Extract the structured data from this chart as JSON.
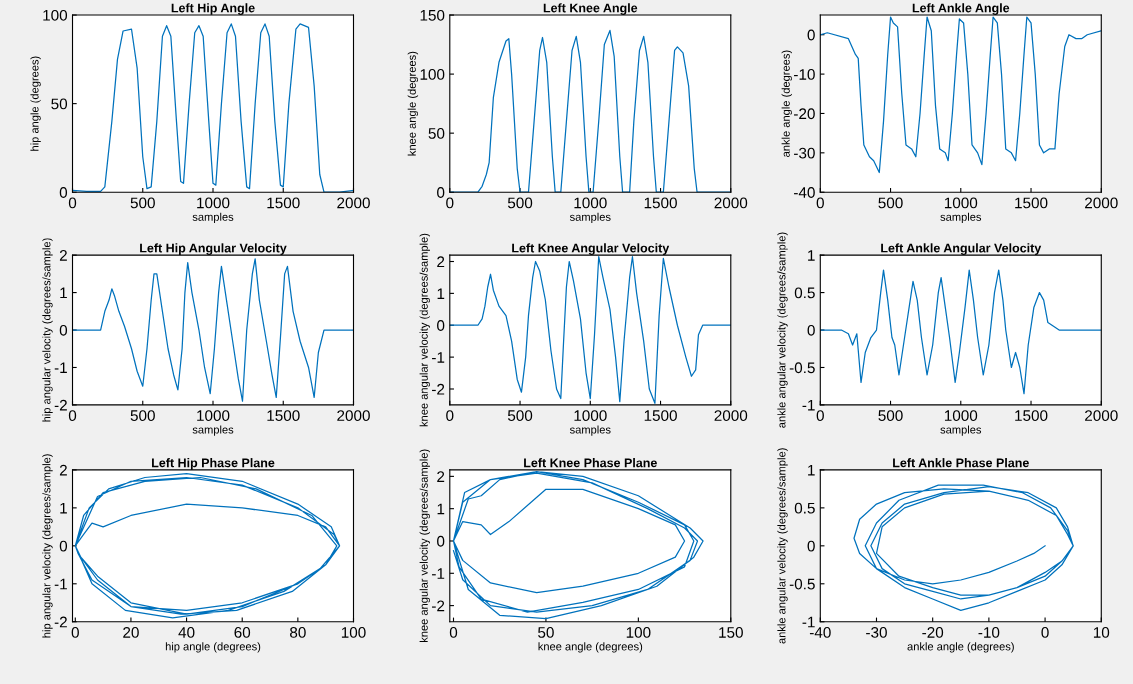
{
  "chart_data": [
    {
      "type": "line",
      "title": "Left Hip Angle",
      "xlabel": "samples",
      "ylabel": "hip angle (degrees)",
      "xlim": [
        0,
        2000
      ],
      "xticks": [
        0,
        500,
        1000,
        1500,
        2000
      ],
      "ylim": [
        0,
        100
      ],
      "yticks": [
        0,
        50,
        100
      ],
      "grid": false,
      "legend": false,
      "marker": "none",
      "line_style": "solid",
      "series": [
        {
          "color": "#0072bd",
          "x": [
            0,
            100,
            200,
            230,
            280,
            320,
            360,
            420,
            460,
            500,
            530,
            560,
            600,
            640,
            670,
            700,
            740,
            770,
            790,
            830,
            870,
            900,
            930,
            970,
            1000,
            1020,
            1060,
            1100,
            1130,
            1160,
            1200,
            1240,
            1260,
            1300,
            1340,
            1370,
            1400,
            1440,
            1480,
            1500,
            1540,
            1590,
            1620,
            1680,
            1720,
            1760,
            1790,
            1820,
            1900,
            2000
          ],
          "values": [
            1,
            0.5,
            0.5,
            3,
            40,
            75,
            91,
            92,
            70,
            20,
            2,
            3,
            40,
            88,
            94,
            88,
            40,
            6,
            5,
            50,
            90,
            94,
            88,
            40,
            5,
            4,
            50,
            90,
            95,
            88,
            40,
            3,
            2,
            50,
            90,
            95,
            88,
            40,
            4,
            3,
            50,
            92,
            95,
            93,
            60,
            10,
            0,
            0,
            0,
            1
          ]
        }
      ]
    },
    {
      "type": "line",
      "title": "Left Knee Angle",
      "xlabel": "samples",
      "ylabel": "knee angle (degrees)",
      "xlim": [
        0,
        2000
      ],
      "xticks": [
        0,
        500,
        1000,
        1500,
        2000
      ],
      "ylim": [
        0,
        150
      ],
      "yticks": [
        0,
        50,
        100,
        150
      ],
      "grid": false,
      "legend": false,
      "marker": "none",
      "line_style": "solid",
      "series": [
        {
          "color": "#0072bd",
          "x": [
            0,
            200,
            230,
            260,
            280,
            310,
            350,
            400,
            420,
            440,
            480,
            500,
            560,
            600,
            640,
            660,
            690,
            730,
            750,
            790,
            830,
            870,
            900,
            930,
            970,
            990,
            1020,
            1060,
            1100,
            1140,
            1170,
            1210,
            1230,
            1280,
            1310,
            1350,
            1380,
            1410,
            1450,
            1470,
            1520,
            1560,
            1600,
            1620,
            1660,
            1700,
            1740,
            1760,
            2000
          ],
          "values": [
            0,
            0,
            5,
            15,
            25,
            80,
            110,
            128,
            130,
            100,
            20,
            0,
            0,
            60,
            120,
            131,
            110,
            30,
            0,
            0,
            60,
            120,
            132,
            110,
            30,
            0,
            0,
            60,
            125,
            137,
            115,
            30,
            0,
            0,
            60,
            120,
            132,
            110,
            30,
            0,
            0,
            60,
            120,
            123,
            118,
            90,
            20,
            0,
            0
          ]
        }
      ]
    },
    {
      "type": "line",
      "title": "Left Ankle Angle",
      "xlabel": "samples",
      "ylabel": "ankle angle (degrees)",
      "xlim": [
        0,
        2000
      ],
      "xticks": [
        0,
        500,
        1000,
        1500,
        2000
      ],
      "ylim": [
        -40,
        5
      ],
      "yticks": [
        -40,
        -30,
        -20,
        -10,
        0
      ],
      "grid": false,
      "legend": false,
      "marker": "none",
      "line_style": "solid",
      "series": [
        {
          "color": "#0072bd",
          "x": [
            0,
            50,
            200,
            250,
            270,
            290,
            310,
            350,
            380,
            420,
            450,
            480,
            500,
            520,
            550,
            580,
            610,
            650,
            680,
            710,
            740,
            760,
            790,
            820,
            850,
            890,
            910,
            940,
            970,
            990,
            1020,
            1050,
            1080,
            1120,
            1150,
            1180,
            1210,
            1230,
            1260,
            1290,
            1320,
            1360,
            1390,
            1420,
            1450,
            1470,
            1500,
            1530,
            1560,
            1590,
            1630,
            1670,
            1700,
            1740,
            1770,
            1820,
            1860,
            1900,
            2000
          ],
          "values": [
            0,
            0.5,
            -1,
            -5,
            -6,
            -18,
            -28,
            -31,
            -32,
            -35,
            -22,
            -5,
            4.5,
            3,
            2,
            -15,
            -28,
            -29,
            -31,
            -20,
            -5,
            4.5,
            1,
            -18,
            -29,
            -30,
            -32,
            -20,
            -5,
            4,
            3,
            -10,
            -28,
            -30,
            -33,
            -20,
            -5,
            4.5,
            3,
            -10,
            -29,
            -30,
            -32,
            -20,
            -5,
            4.5,
            3,
            -10,
            -28,
            -30,
            -29,
            -29,
            -15,
            -3,
            0,
            -1,
            -1,
            0,
            1
          ]
        }
      ]
    },
    {
      "type": "line",
      "title": "Left Hip Angular Velocity",
      "xlabel": "samples",
      "ylabel": "hip angular velocity (degrees/sample)",
      "xlim": [
        0,
        2000
      ],
      "xticks": [
        0,
        500,
        1000,
        1500,
        2000
      ],
      "ylim": [
        -2,
        2
      ],
      "yticks": [
        -2,
        -1,
        0,
        1,
        2
      ],
      "grid": false,
      "legend": false,
      "marker": "none",
      "line_style": "solid",
      "series": [
        {
          "color": "#0072bd",
          "x": [
            0,
            200,
            230,
            260,
            280,
            300,
            330,
            370,
            420,
            460,
            500,
            530,
            560,
            580,
            600,
            640,
            680,
            720,
            750,
            780,
            800,
            820,
            850,
            900,
            940,
            980,
            1010,
            1040,
            1060,
            1100,
            1140,
            1180,
            1210,
            1240,
            1280,
            1300,
            1330,
            1380,
            1420,
            1450,
            1480,
            1510,
            1530,
            1570,
            1620,
            1680,
            1720,
            1750,
            1790,
            2000
          ],
          "values": [
            0,
            0,
            0.5,
            0.8,
            1.1,
            0.9,
            0.5,
            0.1,
            -0.5,
            -1.1,
            -1.5,
            -0.5,
            0.8,
            1.5,
            1.5,
            0.5,
            -0.5,
            -1.2,
            -1.6,
            -0.5,
            1.0,
            1.8,
            1.0,
            0,
            -1.0,
            -1.7,
            -0.5,
            1.0,
            1.7,
            0.7,
            -0.3,
            -1.3,
            -1.9,
            0,
            1.5,
            1.9,
            0.8,
            -0.3,
            -1.2,
            -1.8,
            -0.2,
            1.5,
            1.7,
            0.5,
            -0.3,
            -1.0,
            -1.8,
            -0.6,
            0,
            0
          ]
        }
      ]
    },
    {
      "type": "line",
      "title": "Left Knee Angular Velocity",
      "xlabel": "samples",
      "ylabel": "knee angular velocity (degrees/sample)",
      "xlim": [
        0,
        2000
      ],
      "xticks": [
        0,
        500,
        1000,
        1500,
        2000
      ],
      "ylim": [
        -2.5,
        2.2
      ],
      "yticks": [
        -2,
        -1,
        0,
        1,
        2
      ],
      "grid": false,
      "legend": false,
      "marker": "none",
      "line_style": "solid",
      "series": [
        {
          "color": "#0072bd",
          "x": [
            0,
            200,
            230,
            250,
            270,
            290,
            310,
            350,
            400,
            440,
            480,
            510,
            540,
            560,
            590,
            610,
            640,
            680,
            720,
            760,
            790,
            810,
            830,
            850,
            880,
            930,
            970,
            1000,
            1030,
            1060,
            1090,
            1140,
            1180,
            1210,
            1240,
            1280,
            1300,
            1330,
            1380,
            1420,
            1460,
            1490,
            1520,
            1560,
            1620,
            1680,
            1720,
            1750,
            1770,
            1800,
            2000
          ],
          "values": [
            0,
            0,
            0.2,
            0.6,
            1.2,
            1.6,
            1.1,
            0.6,
            0.3,
            -0.5,
            -1.7,
            -2.1,
            -1.0,
            0.3,
            1.5,
            2.0,
            1.7,
            0.8,
            -0.8,
            -2.0,
            -2.3,
            -0.5,
            1.2,
            2.0,
            1.4,
            0.2,
            -1.5,
            -2.3,
            -0.3,
            2.15,
            1.5,
            0.5,
            -1.0,
            -2.4,
            -0.5,
            1.5,
            2.15,
            1.0,
            -0.5,
            -2.0,
            -2.45,
            0.3,
            2.1,
            1.2,
            0,
            -1.0,
            -1.6,
            -1.4,
            -0.3,
            0,
            0
          ]
        }
      ]
    },
    {
      "type": "line",
      "title": "Left Ankle Angular Velocity",
      "xlabel": "samples",
      "ylabel": "ankle angular velocity (degrees/sample)",
      "xlim": [
        0,
        2000
      ],
      "xticks": [
        0,
        500,
        1000,
        1500,
        2000
      ],
      "ylim": [
        -1,
        1
      ],
      "yticks": [
        -1,
        -0.5,
        0,
        0.5,
        1
      ],
      "grid": false,
      "legend": false,
      "marker": "none",
      "line_style": "solid",
      "series": [
        {
          "color": "#0072bd",
          "x": [
            0,
            150,
            200,
            230,
            260,
            290,
            320,
            360,
            400,
            430,
            450,
            480,
            510,
            530,
            560,
            600,
            640,
            660,
            690,
            720,
            760,
            800,
            840,
            860,
            890,
            920,
            960,
            990,
            1030,
            1060,
            1090,
            1120,
            1160,
            1200,
            1240,
            1270,
            1300,
            1320,
            1360,
            1390,
            1420,
            1450,
            1480,
            1520,
            1560,
            1590,
            1620,
            1660,
            1700,
            2000
          ],
          "values": [
            0,
            0,
            -0.05,
            -0.2,
            -0.05,
            -0.7,
            -0.3,
            -0.1,
            0,
            0.5,
            0.8,
            0.4,
            -0.1,
            -0.2,
            -0.6,
            -0.1,
            0.4,
            0.65,
            0.4,
            -0.1,
            -0.6,
            -0.2,
            0.5,
            0.7,
            0.3,
            -0.1,
            -0.7,
            -0.3,
            0.3,
            0.8,
            0.4,
            -0.1,
            -0.6,
            -0.2,
            0.5,
            0.8,
            0.4,
            0,
            -0.5,
            -0.3,
            -0.5,
            -0.85,
            -0.2,
            0.3,
            0.5,
            0.4,
            0.1,
            0.05,
            0,
            0
          ]
        }
      ]
    },
    {
      "type": "line",
      "title": "Left Hip Phase Plane",
      "xlabel": "hip angle (degrees)",
      "ylabel": "hip angular velocity (degrees/sample)",
      "xlim": [
        -1,
        100
      ],
      "xticks": [
        0,
        20,
        40,
        60,
        80,
        100
      ],
      "ylim": [
        -2,
        2
      ],
      "yticks": [
        -2,
        -1,
        0,
        1,
        2
      ],
      "grid": false,
      "legend": false,
      "marker": "none",
      "line_style": "solid",
      "series": [
        {
          "color": "#0072bd",
          "x": [
            0,
            3,
            6,
            10,
            20,
            40,
            60,
            80,
            90,
            95,
            90,
            80,
            60,
            40,
            20,
            8,
            2,
            0,
            5,
            12,
            25,
            40,
            60,
            80,
            92,
            95,
            90,
            80,
            60,
            40,
            20,
            6,
            1,
            0,
            8,
            20,
            40,
            60,
            80,
            93,
            95,
            88,
            75,
            55,
            35,
            18,
            6,
            0,
            3,
            10,
            25,
            45,
            65,
            85,
            94,
            90,
            78,
            58,
            38,
            20,
            8,
            2
          ],
          "values": [
            0,
            0.3,
            0.6,
            0.5,
            0.8,
            1.1,
            1.0,
            0.8,
            0.5,
            0,
            -0.5,
            -1.0,
            -1.6,
            -1.8,
            -1.5,
            -0.8,
            -0.3,
            0,
            1.0,
            1.5,
            1.8,
            1.9,
            1.7,
            1.1,
            0.5,
            0,
            -0.5,
            -1.0,
            -1.5,
            -1.7,
            -1.6,
            -0.9,
            -0.2,
            0,
            1.3,
            1.7,
            1.8,
            1.6,
            1.0,
            0.3,
            0,
            -0.6,
            -1.2,
            -1.7,
            -1.9,
            -1.7,
            -1.0,
            0,
            0.8,
            1.4,
            1.7,
            1.8,
            1.5,
            0.8,
            0,
            -0.5,
            -1.2,
            -1.7,
            -1.8,
            -1.6,
            -0.9,
            -0.3
          ]
        }
      ]
    },
    {
      "type": "line",
      "title": "Left Knee Phase Plane",
      "xlabel": "knee angle (degrees)",
      "ylabel": "knee angular velocity (degrees/sample)",
      "xlim": [
        -2,
        150
      ],
      "xticks": [
        0,
        50,
        100,
        150
      ],
      "ylim": [
        -2.5,
        2.2
      ],
      "yticks": [
        -2,
        -1,
        0,
        1,
        2
      ],
      "grid": false,
      "legend": false,
      "marker": "none",
      "line_style": "solid",
      "series": [
        {
          "color": "#0072bd",
          "x": [
            0,
            5,
            15,
            20,
            30,
            50,
            70,
            100,
            120,
            125,
            120,
            100,
            70,
            45,
            20,
            5,
            0,
            5,
            20,
            45,
            70,
            100,
            125,
            130,
            125,
            100,
            70,
            40,
            15,
            3,
            0,
            8,
            15,
            25,
            45,
            70,
            100,
            128,
            135,
            130,
            110,
            80,
            50,
            25,
            8,
            0,
            6,
            20,
            45,
            75,
            105,
            125,
            132,
            128,
            105,
            75,
            45,
            20,
            5,
            0
          ],
          "values": [
            0,
            0.6,
            0.5,
            0.2,
            0.6,
            1.6,
            1.6,
            1.0,
            0.5,
            0,
            -0.5,
            -1.0,
            -1.4,
            -1.6,
            -1.3,
            -0.6,
            0,
            1.2,
            1.9,
            2.15,
            1.9,
            1.2,
            0.5,
            0,
            -0.8,
            -1.5,
            -1.9,
            -2.2,
            -1.8,
            -0.8,
            0,
            1.3,
            1.4,
            1.9,
            2.15,
            2.0,
            1.4,
            0.4,
            0,
            -0.5,
            -1.4,
            -2.0,
            -2.4,
            -2.3,
            -1.5,
            0,
            1.5,
            1.9,
            2.1,
            1.8,
            1.0,
            0.4,
            0,
            -0.6,
            -1.5,
            -2.0,
            -2.2,
            -2.0,
            -1.2,
            -0.3
          ]
        }
      ]
    },
    {
      "type": "line",
      "title": "Left Ankle Phase Plane",
      "xlabel": "ankle angle (degrees)",
      "ylabel": "ankle angular velocity (degrees/sample)",
      "xlim": [
        -40,
        10
      ],
      "xticks": [
        -40,
        -30,
        -20,
        -10,
        0,
        10
      ],
      "ylim": [
        -1,
        1
      ],
      "yticks": [
        -1,
        -0.5,
        0,
        0.5,
        1
      ],
      "grid": false,
      "legend": false,
      "marker": "none",
      "line_style": "solid",
      "series": [
        {
          "color": "#0072bd",
          "x": [
            0,
            -2,
            -5,
            -10,
            -15,
            -20,
            -25,
            -30,
            -33,
            -34,
            -33,
            -30,
            -25,
            -18,
            -10,
            -3,
            2,
            4,
            5,
            3,
            0,
            -5,
            -10,
            -15,
            -20,
            -25,
            -29,
            -31,
            -29,
            -25,
            -18,
            -10,
            -3,
            2,
            4,
            5,
            3,
            0,
            -5,
            -10,
            -15,
            -20,
            -25,
            -30,
            -32,
            -30,
            -26,
            -19,
            -11,
            -4,
            1,
            4,
            5,
            3,
            0,
            -5,
            -10,
            -15,
            -20,
            -26,
            -30,
            -29,
            -25,
            -18,
            -10,
            -3,
            2,
            4,
            5
          ],
          "values": [
            0,
            -0.1,
            -0.2,
            -0.35,
            -0.45,
            -0.5,
            -0.45,
            -0.3,
            -0.1,
            0.1,
            0.35,
            0.55,
            0.7,
            0.75,
            0.72,
            0.6,
            0.4,
            0.2,
            0,
            -0.2,
            -0.35,
            -0.55,
            -0.65,
            -0.7,
            -0.6,
            -0.5,
            -0.3,
            0,
            0.3,
            0.55,
            0.7,
            0.78,
            0.7,
            0.5,
            0.25,
            0,
            -0.25,
            -0.45,
            -0.6,
            -0.75,
            -0.85,
            -0.7,
            -0.55,
            -0.3,
            0,
            0.3,
            0.6,
            0.8,
            0.8,
            0.7,
            0.5,
            0.2,
            0,
            -0.2,
            -0.4,
            -0.55,
            -0.65,
            -0.65,
            -0.55,
            -0.4,
            -0.1,
            0.25,
            0.5,
            0.68,
            0.72,
            0.6,
            0.4,
            0.15,
            0
          ]
        }
      ]
    }
  ]
}
